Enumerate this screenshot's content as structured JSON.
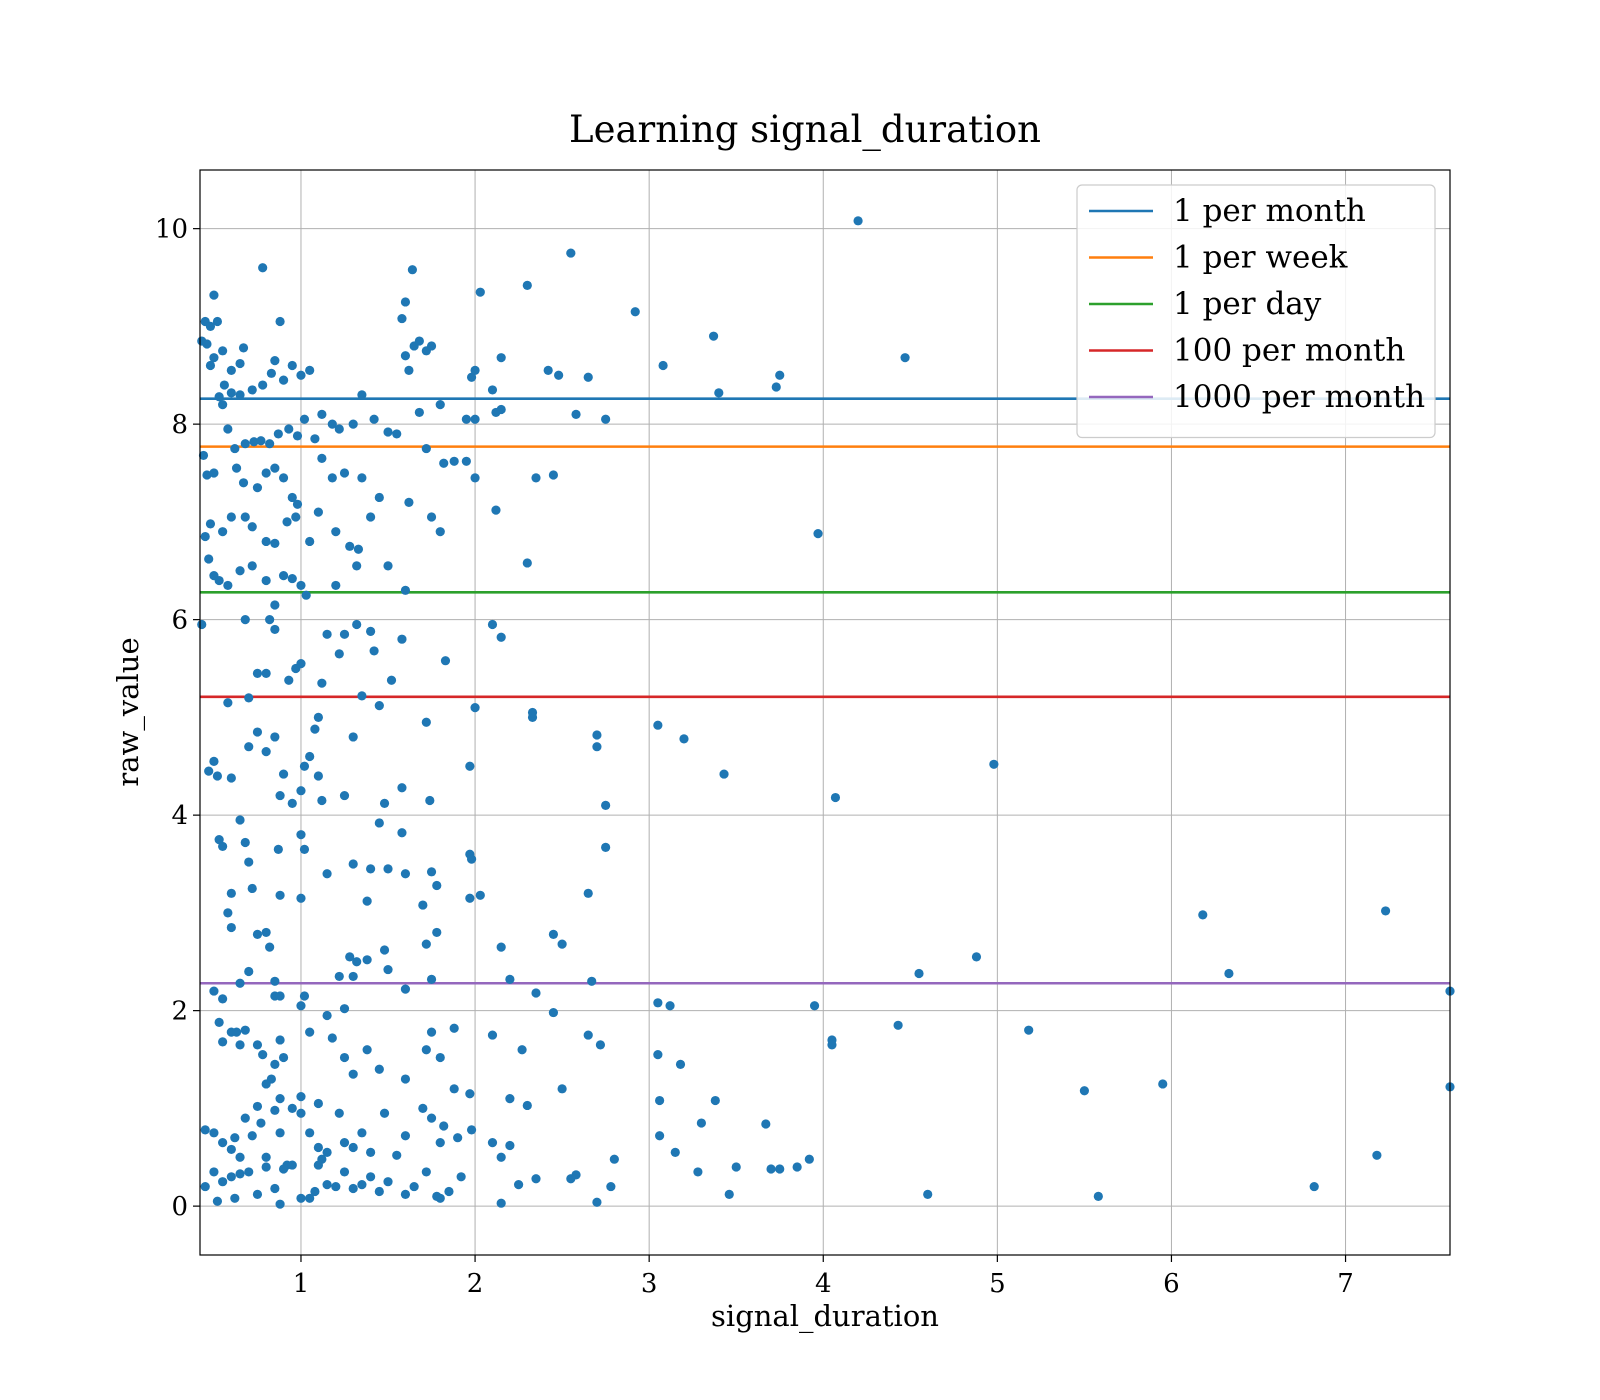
{
  "chart_data": {
    "type": "scatter",
    "title": "Learning signal_duration",
    "xlabel": "signal_duration",
    "ylabel": "raw_value",
    "xlim": [
      0.42,
      7.6
    ],
    "ylim": [
      -0.5,
      10.6
    ],
    "xticks": [
      1,
      2,
      3,
      4,
      5,
      6,
      7
    ],
    "yticks": [
      0,
      2,
      4,
      6,
      8,
      10
    ],
    "grid": true,
    "legend_position": "top-right",
    "point_color": "#1f77b4",
    "reference_lines": [
      {
        "name": "1 per month",
        "y": 8.26,
        "color": "#1f77b4"
      },
      {
        "name": "1 per week",
        "y": 7.77,
        "color": "#ff7f0e"
      },
      {
        "name": "1 per day",
        "y": 6.28,
        "color": "#2ca02c"
      },
      {
        "name": "100 per month",
        "y": 5.21,
        "color": "#d62728"
      },
      {
        "name": "1000 per month",
        "y": 2.28,
        "color": "#9467bd"
      }
    ],
    "points": [
      [
        0.45,
        9.05
      ],
      [
        0.48,
        9.0
      ],
      [
        0.5,
        9.32
      ],
      [
        0.52,
        9.05
      ],
      [
        0.43,
        8.85
      ],
      [
        0.46,
        8.82
      ],
      [
        0.5,
        8.68
      ],
      [
        0.48,
        8.6
      ],
      [
        0.55,
        8.75
      ],
      [
        0.6,
        8.55
      ],
      [
        0.65,
        8.62
      ],
      [
        0.67,
        8.78
      ],
      [
        0.56,
        8.4
      ],
      [
        0.53,
        8.28
      ],
      [
        0.6,
        8.32
      ],
      [
        0.65,
        8.3
      ],
      [
        0.72,
        8.35
      ],
      [
        0.78,
        8.4
      ],
      [
        0.83,
        8.52
      ],
      [
        0.85,
        8.65
      ],
      [
        0.9,
        8.45
      ],
      [
        0.95,
        8.6
      ],
      [
        1.0,
        8.5
      ],
      [
        1.05,
        8.55
      ],
      [
        0.78,
        9.6
      ],
      [
        0.88,
        9.05
      ],
      [
        0.55,
        8.2
      ],
      [
        0.58,
        7.95
      ],
      [
        0.62,
        7.75
      ],
      [
        0.68,
        7.8
      ],
      [
        0.73,
        7.82
      ],
      [
        0.77,
        7.83
      ],
      [
        0.82,
        7.8
      ],
      [
        0.87,
        7.9
      ],
      [
        0.93,
        7.95
      ],
      [
        0.98,
        7.88
      ],
      [
        1.02,
        8.05
      ],
      [
        1.08,
        7.85
      ],
      [
        1.12,
        8.1
      ],
      [
        1.18,
        8.0
      ],
      [
        1.22,
        7.95
      ],
      [
        1.3,
        8.0
      ],
      [
        1.35,
        8.3
      ],
      [
        1.42,
        8.05
      ],
      [
        1.5,
        7.92
      ],
      [
        1.55,
        7.9
      ],
      [
        0.44,
        7.68
      ],
      [
        0.46,
        7.48
      ],
      [
        0.5,
        7.5
      ],
      [
        0.63,
        7.55
      ],
      [
        0.67,
        7.4
      ],
      [
        0.75,
        7.35
      ],
      [
        0.8,
        7.5
      ],
      [
        0.85,
        7.55
      ],
      [
        0.9,
        7.45
      ],
      [
        0.95,
        7.25
      ],
      [
        0.98,
        7.18
      ],
      [
        1.12,
        7.65
      ],
      [
        1.18,
        7.45
      ],
      [
        1.25,
        7.5
      ],
      [
        1.35,
        7.45
      ],
      [
        1.45,
        7.25
      ],
      [
        1.62,
        7.2
      ],
      [
        1.75,
        7.05
      ],
      [
        1.8,
        6.9
      ],
      [
        0.48,
        6.98
      ],
      [
        0.45,
        6.85
      ],
      [
        0.55,
        6.9
      ],
      [
        0.6,
        7.05
      ],
      [
        0.68,
        7.05
      ],
      [
        0.72,
        6.95
      ],
      [
        0.8,
        6.8
      ],
      [
        0.85,
        6.78
      ],
      [
        0.92,
        7.0
      ],
      [
        0.97,
        7.05
      ],
      [
        1.05,
        6.8
      ],
      [
        1.1,
        7.1
      ],
      [
        1.2,
        6.9
      ],
      [
        1.28,
        6.75
      ],
      [
        1.33,
        6.72
      ],
      [
        1.4,
        7.05
      ],
      [
        0.47,
        6.62
      ],
      [
        0.5,
        6.45
      ],
      [
        0.53,
        6.4
      ],
      [
        0.58,
        6.35
      ],
      [
        0.65,
        6.5
      ],
      [
        0.72,
        6.55
      ],
      [
        0.8,
        6.4
      ],
      [
        0.85,
        6.15
      ],
      [
        0.9,
        6.45
      ],
      [
        0.95,
        6.42
      ],
      [
        1.0,
        6.35
      ],
      [
        1.03,
        6.25
      ],
      [
        1.2,
        6.35
      ],
      [
        1.32,
        6.55
      ],
      [
        1.5,
        6.55
      ],
      [
        1.6,
        6.3
      ],
      [
        0.43,
        5.95
      ],
      [
        0.68,
        6.0
      ],
      [
        0.82,
        6.0
      ],
      [
        0.85,
        5.9
      ],
      [
        1.15,
        5.85
      ],
      [
        1.25,
        5.85
      ],
      [
        1.32,
        5.95
      ],
      [
        1.4,
        5.88
      ],
      [
        1.58,
        5.8
      ],
      [
        2.1,
        5.95
      ],
      [
        2.15,
        5.82
      ],
      [
        0.58,
        5.15
      ],
      [
        0.7,
        5.2
      ],
      [
        0.75,
        5.45
      ],
      [
        0.8,
        5.45
      ],
      [
        0.93,
        5.38
      ],
      [
        0.97,
        5.5
      ],
      [
        1.0,
        5.55
      ],
      [
        1.12,
        5.35
      ],
      [
        1.22,
        5.65
      ],
      [
        1.35,
        5.22
      ],
      [
        1.42,
        5.68
      ],
      [
        1.45,
        5.12
      ],
      [
        1.52,
        5.38
      ],
      [
        1.83,
        5.58
      ],
      [
        2.0,
        5.1
      ],
      [
        0.47,
        4.45
      ],
      [
        0.5,
        4.55
      ],
      [
        0.52,
        4.4
      ],
      [
        0.6,
        4.38
      ],
      [
        0.7,
        4.7
      ],
      [
        0.75,
        4.85
      ],
      [
        0.8,
        4.65
      ],
      [
        0.85,
        4.8
      ],
      [
        0.88,
        4.2
      ],
      [
        0.9,
        4.42
      ],
      [
        0.95,
        4.12
      ],
      [
        1.0,
        4.25
      ],
      [
        1.02,
        4.5
      ],
      [
        1.05,
        4.6
      ],
      [
        1.08,
        4.88
      ],
      [
        1.1,
        5.0
      ],
      [
        1.1,
        4.4
      ],
      [
        1.12,
        4.15
      ],
      [
        1.25,
        4.2
      ],
      [
        1.3,
        4.8
      ],
      [
        1.48,
        4.12
      ],
      [
        1.58,
        4.28
      ],
      [
        1.72,
        4.95
      ],
      [
        1.74,
        4.15
      ],
      [
        1.97,
        4.5
      ],
      [
        2.33,
        5.0
      ],
      [
        2.33,
        5.05
      ],
      [
        2.7,
        4.82
      ],
      [
        2.7,
        4.7
      ],
      [
        3.05,
        4.92
      ],
      [
        3.2,
        4.78
      ],
      [
        3.43,
        4.42
      ],
      [
        2.75,
        4.1
      ],
      [
        0.53,
        3.75
      ],
      [
        0.55,
        3.68
      ],
      [
        0.6,
        3.2
      ],
      [
        0.65,
        3.95
      ],
      [
        0.68,
        3.72
      ],
      [
        0.7,
        3.52
      ],
      [
        0.72,
        3.25
      ],
      [
        0.87,
        3.65
      ],
      [
        0.88,
        3.18
      ],
      [
        1.0,
        3.8
      ],
      [
        1.02,
        3.65
      ],
      [
        1.0,
        3.15
      ],
      [
        1.15,
        3.4
      ],
      [
        1.3,
        3.5
      ],
      [
        1.38,
        3.12
      ],
      [
        1.4,
        3.45
      ],
      [
        1.45,
        3.92
      ],
      [
        1.5,
        3.45
      ],
      [
        1.58,
        3.82
      ],
      [
        1.6,
        3.4
      ],
      [
        1.7,
        3.08
      ],
      [
        1.75,
        3.42
      ],
      [
        1.78,
        3.28
      ],
      [
        1.97,
        3.6
      ],
      [
        1.98,
        3.55
      ],
      [
        1.97,
        3.15
      ],
      [
        2.03,
        3.18
      ],
      [
        2.65,
        3.2
      ],
      [
        2.75,
        3.67
      ],
      [
        0.58,
        3.0
      ],
      [
        0.6,
        2.85
      ],
      [
        0.65,
        2.28
      ],
      [
        0.7,
        2.4
      ],
      [
        0.75,
        2.78
      ],
      [
        0.8,
        2.8
      ],
      [
        0.82,
        2.65
      ],
      [
        0.85,
        2.3
      ],
      [
        0.85,
        2.15
      ],
      [
        0.88,
        2.15
      ],
      [
        0.5,
        2.2
      ],
      [
        0.55,
        2.12
      ],
      [
        1.0,
        2.05
      ],
      [
        1.02,
        2.15
      ],
      [
        1.22,
        2.35
      ],
      [
        1.25,
        2.02
      ],
      [
        1.28,
        2.55
      ],
      [
        1.32,
        2.5
      ],
      [
        1.3,
        2.35
      ],
      [
        1.38,
        2.52
      ],
      [
        1.48,
        2.62
      ],
      [
        1.5,
        2.42
      ],
      [
        1.6,
        2.22
      ],
      [
        1.72,
        2.68
      ],
      [
        1.75,
        2.32
      ],
      [
        1.78,
        2.8
      ],
      [
        2.15,
        2.65
      ],
      [
        2.2,
        2.32
      ],
      [
        2.35,
        2.18
      ],
      [
        2.45,
        2.78
      ],
      [
        2.5,
        2.68
      ],
      [
        2.67,
        2.3
      ],
      [
        4.55,
        2.38
      ],
      [
        4.88,
        2.55
      ],
      [
        6.33,
        2.38
      ],
      [
        7.6,
        2.2
      ],
      [
        6.18,
        2.98
      ],
      [
        7.23,
        3.02
      ],
      [
        0.53,
        1.88
      ],
      [
        0.55,
        1.68
      ],
      [
        0.6,
        1.78
      ],
      [
        0.63,
        1.78
      ],
      [
        0.65,
        1.65
      ],
      [
        0.68,
        1.8
      ],
      [
        0.75,
        1.65
      ],
      [
        0.78,
        1.55
      ],
      [
        0.83,
        1.3
      ],
      [
        0.85,
        1.45
      ],
      [
        0.88,
        1.7
      ],
      [
        0.9,
        1.52
      ],
      [
        0.75,
        1.02
      ],
      [
        0.8,
        1.25
      ],
      [
        0.88,
        1.1
      ],
      [
        1.05,
        1.78
      ],
      [
        1.0,
        1.12
      ],
      [
        1.1,
        1.05
      ],
      [
        1.15,
        1.95
      ],
      [
        1.18,
        1.72
      ],
      [
        1.25,
        1.52
      ],
      [
        1.3,
        1.35
      ],
      [
        1.38,
        1.6
      ],
      [
        1.45,
        1.4
      ],
      [
        1.6,
        1.3
      ],
      [
        1.72,
        1.6
      ],
      [
        1.75,
        1.78
      ],
      [
        1.8,
        1.52
      ],
      [
        1.88,
        1.82
      ],
      [
        1.88,
        1.2
      ],
      [
        1.97,
        1.15
      ],
      [
        2.1,
        1.75
      ],
      [
        2.2,
        1.1
      ],
      [
        2.27,
        1.6
      ],
      [
        2.45,
        1.98
      ],
      [
        2.5,
        1.2
      ],
      [
        2.65,
        1.75
      ],
      [
        2.72,
        1.65
      ],
      [
        3.05,
        2.08
      ],
      [
        3.05,
        1.55
      ],
      [
        3.12,
        2.05
      ],
      [
        3.18,
        1.45
      ],
      [
        3.38,
        1.08
      ],
      [
        3.95,
        2.05
      ],
      [
        4.05,
        1.7
      ],
      [
        4.05,
        1.65
      ],
      [
        4.43,
        1.85
      ],
      [
        5.18,
        1.8
      ],
      [
        5.5,
        1.18
      ],
      [
        5.95,
        1.25
      ],
      [
        7.6,
        1.22
      ],
      [
        3.06,
        1.08
      ],
      [
        0.45,
        0.78
      ],
      [
        0.5,
        0.75
      ],
      [
        0.55,
        0.65
      ],
      [
        0.6,
        0.58
      ],
      [
        0.62,
        0.7
      ],
      [
        0.65,
        0.5
      ],
      [
        0.68,
        0.9
      ],
      [
        0.72,
        0.72
      ],
      [
        0.77,
        0.85
      ],
      [
        0.8,
        0.5
      ],
      [
        0.85,
        0.98
      ],
      [
        0.88,
        0.75
      ],
      [
        0.92,
        0.42
      ],
      [
        0.95,
        1.0
      ],
      [
        1.0,
        0.95
      ],
      [
        1.05,
        0.75
      ],
      [
        1.1,
        0.6
      ],
      [
        1.12,
        0.48
      ],
      [
        1.15,
        0.55
      ],
      [
        1.22,
        0.95
      ],
      [
        1.25,
        0.65
      ],
      [
        1.3,
        0.6
      ],
      [
        1.35,
        0.75
      ],
      [
        1.4,
        0.55
      ],
      [
        1.48,
        0.95
      ],
      [
        1.55,
        0.52
      ],
      [
        1.6,
        0.72
      ],
      [
        1.7,
        1.0
      ],
      [
        1.75,
        0.9
      ],
      [
        1.8,
        0.65
      ],
      [
        1.82,
        0.82
      ],
      [
        1.9,
        0.7
      ],
      [
        1.98,
        0.78
      ],
      [
        2.1,
        0.65
      ],
      [
        2.15,
        0.5
      ],
      [
        2.2,
        0.62
      ],
      [
        2.3,
        1.03
      ],
      [
        3.06,
        0.72
      ],
      [
        3.15,
        0.55
      ],
      [
        3.3,
        0.85
      ],
      [
        3.67,
        0.84
      ],
      [
        3.92,
        0.48
      ],
      [
        0.45,
        0.2
      ],
      [
        0.5,
        0.35
      ],
      [
        0.52,
        0.05
      ],
      [
        0.55,
        0.25
      ],
      [
        0.6,
        0.3
      ],
      [
        0.62,
        0.08
      ],
      [
        0.65,
        0.33
      ],
      [
        0.7,
        0.35
      ],
      [
        0.75,
        0.12
      ],
      [
        0.8,
        0.4
      ],
      [
        0.85,
        0.18
      ],
      [
        0.88,
        0.02
      ],
      [
        0.9,
        0.38
      ],
      [
        0.95,
        0.42
      ],
      [
        1.0,
        0.08
      ],
      [
        1.05,
        0.08
      ],
      [
        1.08,
        0.15
      ],
      [
        1.1,
        0.42
      ],
      [
        1.15,
        0.22
      ],
      [
        1.2,
        0.2
      ],
      [
        1.25,
        0.35
      ],
      [
        1.3,
        0.18
      ],
      [
        1.35,
        0.22
      ],
      [
        1.4,
        0.3
      ],
      [
        1.45,
        0.15
      ],
      [
        1.5,
        0.25
      ],
      [
        1.6,
        0.12
      ],
      [
        1.65,
        0.2
      ],
      [
        1.72,
        0.35
      ],
      [
        1.78,
        0.1
      ],
      [
        1.8,
        0.08
      ],
      [
        1.85,
        0.15
      ],
      [
        1.92,
        0.3
      ],
      [
        2.15,
        0.03
      ],
      [
        2.25,
        0.22
      ],
      [
        2.35,
        0.28
      ],
      [
        2.55,
        0.28
      ],
      [
        2.58,
        0.32
      ],
      [
        2.7,
        0.04
      ],
      [
        2.78,
        0.2
      ],
      [
        2.8,
        0.48
      ],
      [
        3.28,
        0.35
      ],
      [
        3.46,
        0.12
      ],
      [
        3.5,
        0.4
      ],
      [
        3.7,
        0.38
      ],
      [
        3.75,
        0.38
      ],
      [
        3.85,
        0.4
      ],
      [
        4.6,
        0.12
      ],
      [
        5.58,
        0.1
      ],
      [
        6.82,
        0.2
      ],
      [
        7.18,
        0.52
      ],
      [
        1.6,
        8.7
      ],
      [
        1.62,
        8.55
      ],
      [
        1.65,
        8.8
      ],
      [
        1.68,
        8.85
      ],
      [
        1.72,
        8.75
      ],
      [
        1.75,
        8.8
      ],
      [
        1.58,
        9.08
      ],
      [
        1.6,
        9.25
      ],
      [
        1.64,
        9.58
      ],
      [
        1.98,
        8.48
      ],
      [
        2.0,
        8.55
      ],
      [
        2.1,
        8.35
      ],
      [
        2.15,
        8.68
      ],
      [
        2.42,
        8.55
      ],
      [
        2.48,
        8.5
      ],
      [
        2.65,
        8.48
      ],
      [
        2.3,
        9.42
      ],
      [
        2.03,
        9.35
      ],
      [
        2.55,
        9.75
      ],
      [
        2.92,
        9.15
      ],
      [
        3.08,
        8.6
      ],
      [
        3.37,
        8.9
      ],
      [
        3.4,
        8.32
      ],
      [
        3.75,
        8.5
      ],
      [
        3.73,
        8.38
      ],
      [
        4.2,
        10.08
      ],
      [
        4.47,
        8.68
      ],
      [
        1.68,
        8.12
      ],
      [
        1.8,
        8.2
      ],
      [
        1.95,
        8.05
      ],
      [
        2.0,
        8.05
      ],
      [
        2.12,
        8.12
      ],
      [
        2.15,
        8.15
      ],
      [
        2.58,
        8.1
      ],
      [
        2.75,
        8.05
      ],
      [
        1.72,
        7.75
      ],
      [
        1.82,
        7.6
      ],
      [
        1.88,
        7.62
      ],
      [
        1.95,
        7.62
      ],
      [
        2.0,
        7.45
      ],
      [
        2.12,
        7.12
      ],
      [
        2.35,
        7.45
      ],
      [
        2.45,
        7.48
      ],
      [
        2.3,
        6.58
      ],
      [
        3.97,
        6.88
      ],
      [
        4.07,
        4.18
      ],
      [
        4.98,
        4.52
      ]
    ]
  }
}
